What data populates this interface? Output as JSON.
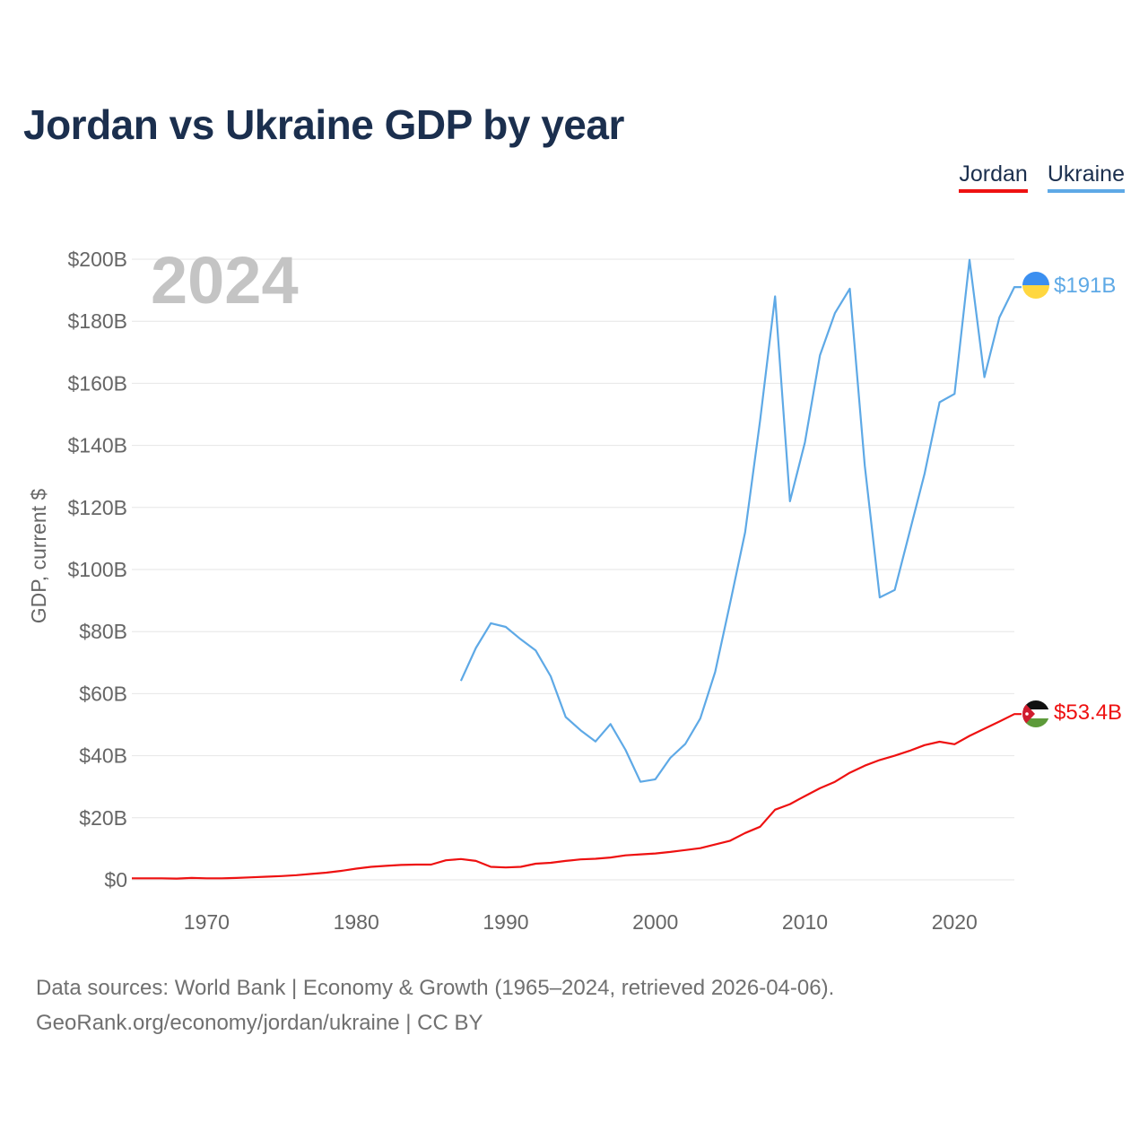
{
  "title": "Jordan vs Ukraine GDP by year",
  "legend": [
    {
      "name": "Jordan",
      "color": "#ee1111"
    },
    {
      "name": "Ukraine",
      "color": "#5ea9e6"
    }
  ],
  "year_label": "2024",
  "source": {
    "line1": "Data sources: World Bank | Economy & Growth (1965–2024, retrieved 2026-04-06).",
    "line2": "GeoRank.org/economy/jordan/ukraine | CC BY"
  },
  "end_labels": {
    "jordan": "$53.4B",
    "ukraine": "$191B"
  },
  "chart_data": {
    "type": "line",
    "title": "Jordan vs Ukraine GDP by year",
    "xlabel": "",
    "ylabel": "GDP, current $",
    "xlim": [
      1965,
      2024
    ],
    "ylim": [
      0,
      200
    ],
    "x_ticks": [
      1970,
      1980,
      1990,
      2000,
      2010,
      2020
    ],
    "y_ticks": [
      0,
      20,
      40,
      60,
      80,
      100,
      120,
      140,
      160,
      180,
      200
    ],
    "y_tick_labels": [
      "$0",
      "$20B",
      "$40B",
      "$60B",
      "$80B",
      "$100B",
      "$120B",
      "$140B",
      "$160B",
      "$180B",
      "$200B"
    ],
    "grid": true,
    "series": [
      {
        "name": "Jordan",
        "color": "#ee1111",
        "x": [
          1965,
          1966,
          1967,
          1968,
          1969,
          1970,
          1971,
          1972,
          1973,
          1974,
          1975,
          1976,
          1977,
          1978,
          1979,
          1980,
          1981,
          1982,
          1983,
          1984,
          1985,
          1986,
          1987,
          1988,
          1989,
          1990,
          1991,
          1992,
          1993,
          1994,
          1995,
          1996,
          1997,
          1998,
          1999,
          2000,
          2001,
          2002,
          2003,
          2004,
          2005,
          2006,
          2007,
          2008,
          2009,
          2010,
          2011,
          2012,
          2013,
          2014,
          2015,
          2016,
          2017,
          2018,
          2019,
          2020,
          2021,
          2022,
          2023,
          2024
        ],
        "values": [
          0.5,
          0.5,
          0.5,
          0.4,
          0.6,
          0.5,
          0.5,
          0.6,
          0.8,
          1.0,
          1.2,
          1.5,
          1.9,
          2.3,
          2.9,
          3.6,
          4.2,
          4.5,
          4.8,
          4.9,
          4.9,
          6.3,
          6.7,
          6.1,
          4.2,
          4.0,
          4.2,
          5.2,
          5.5,
          6.1,
          6.6,
          6.8,
          7.2,
          7.9,
          8.2,
          8.5,
          9.0,
          9.6,
          10.2,
          11.4,
          12.6,
          15.1,
          17.1,
          22.6,
          24.4,
          27.0,
          29.5,
          31.6,
          34.5,
          36.8,
          38.6,
          40.0,
          41.6,
          43.4,
          44.5,
          43.7,
          46.4,
          48.7,
          51.0,
          53.4
        ]
      },
      {
        "name": "Ukraine",
        "color": "#5ea9e6",
        "x": [
          1987,
          1988,
          1989,
          1990,
          1991,
          1992,
          1993,
          1994,
          1995,
          1996,
          1997,
          1998,
          1999,
          2000,
          2001,
          2002,
          2003,
          2004,
          2005,
          2006,
          2007,
          2008,
          2009,
          2010,
          2011,
          2012,
          2013,
          2014,
          2015,
          2016,
          2017,
          2018,
          2019,
          2020,
          2021,
          2022,
          2023,
          2024
        ],
        "values": [
          64.1,
          74.7,
          82.7,
          81.5,
          77.5,
          73.9,
          65.6,
          52.5,
          48.2,
          44.6,
          50.2,
          41.9,
          31.6,
          32.4,
          39.3,
          43.8,
          52.0,
          67.0,
          89.2,
          112.0,
          148.0,
          188.0,
          122.0,
          141.0,
          169.0,
          182.6,
          190.5,
          133.5,
          91.0,
          93.4,
          112.2,
          130.9,
          153.9,
          156.6,
          199.8,
          162.0,
          181.2,
          191.0
        ]
      }
    ]
  }
}
